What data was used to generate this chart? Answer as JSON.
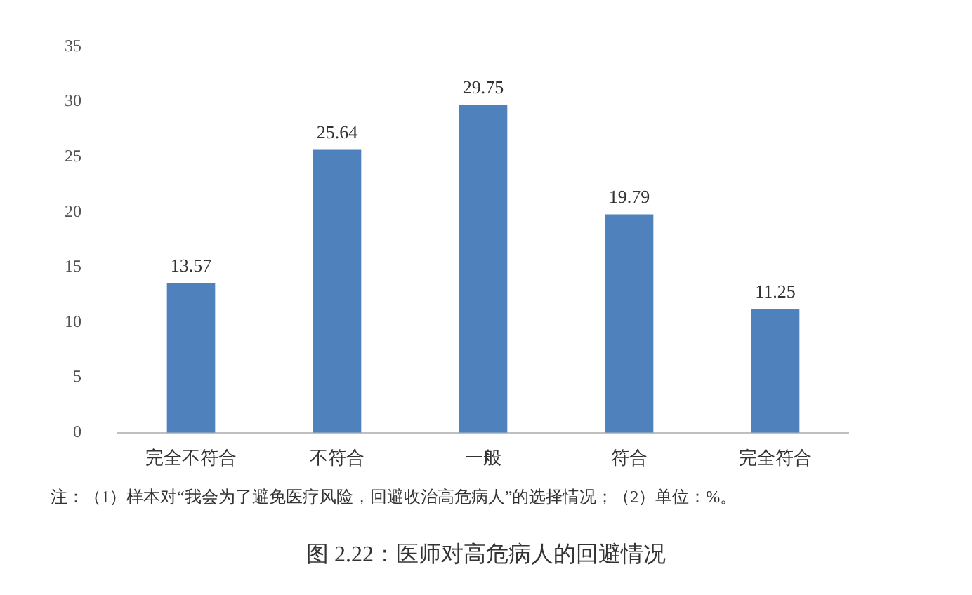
{
  "chart_data": {
    "type": "bar",
    "title": "图 2.22：医师对高危病人的回避情况",
    "categories": [
      "完全不符合",
      "不符合",
      "一般",
      "符合",
      "完全符合"
    ],
    "values": [
      13.57,
      25.64,
      29.75,
      19.79,
      11.25
    ],
    "color": "#4f81bd",
    "ylim": [
      0,
      35
    ],
    "yticks": [
      0,
      5,
      10,
      15,
      20,
      25,
      30,
      35
    ],
    "grid": false,
    "legend": false,
    "data_labels": true,
    "annotations": [
      "注：（1）样本对“我会为了避免医疗风险，回避收治高危病人”的选择情况；（2）单位：%。"
    ]
  }
}
